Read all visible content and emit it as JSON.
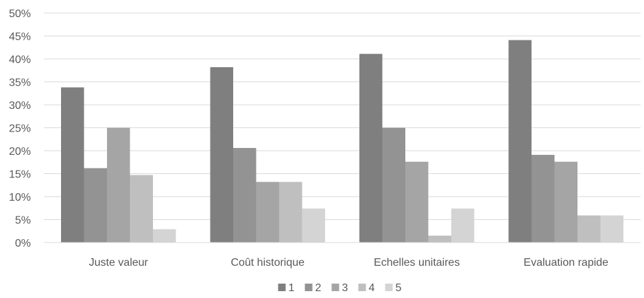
{
  "chart_data": {
    "type": "bar",
    "title": "",
    "xlabel": "",
    "ylabel": "",
    "ylim": [
      0,
      50
    ],
    "yticks": [
      "0%",
      "5%",
      "10%",
      "15%",
      "20%",
      "25%",
      "30%",
      "35%",
      "40%",
      "45%",
      "50%"
    ],
    "grid": true,
    "legend_position": "bottom",
    "categories": [
      "Juste valeur",
      "Coût historique",
      "Echelles unitaires",
      "Evaluation rapide"
    ],
    "series": [
      {
        "name": "1",
        "color": "#7f7f7f",
        "values": [
          33.8,
          38.2,
          41.1,
          44.1
        ]
      },
      {
        "name": "2",
        "color": "#939393",
        "values": [
          16.2,
          20.6,
          25.0,
          19.1
        ]
      },
      {
        "name": "3",
        "color": "#a5a5a5",
        "values": [
          25.0,
          13.2,
          17.6,
          17.6
        ]
      },
      {
        "name": "4",
        "color": "#bfbfbf",
        "values": [
          14.7,
          13.2,
          1.5,
          5.9
        ]
      },
      {
        "name": "5",
        "color": "#d4d4d4",
        "values": [
          2.9,
          7.4,
          7.4,
          5.9
        ]
      }
    ]
  }
}
